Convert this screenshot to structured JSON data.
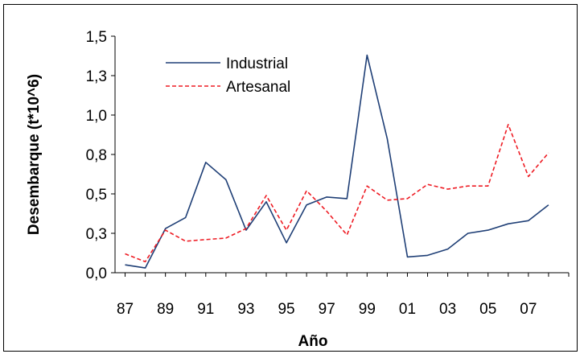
{
  "chart_data": {
    "type": "line",
    "title": "",
    "xlabel": "Año",
    "ylabel": "Desembarque  (t*10^6)",
    "x": [
      87,
      88,
      89,
      90,
      91,
      92,
      93,
      94,
      95,
      96,
      97,
      98,
      99,
      100,
      101,
      102,
      103,
      104,
      105,
      106,
      107,
      108
    ],
    "x_tick_labels": [
      "87",
      "89",
      "91",
      "93",
      "95",
      "97",
      "99",
      "01",
      "03",
      "05",
      "07"
    ],
    "y_tick_labels": [
      "0,0",
      "0,3",
      "0,5",
      "0,8",
      "1,0",
      "1,3",
      "1,5"
    ],
    "ylim": [
      0,
      1.5
    ],
    "grid": false,
    "legend_position": "top-left",
    "series": [
      {
        "name": "Industrial",
        "color": "#1f3f76",
        "style": "solid",
        "values": [
          0.05,
          0.03,
          0.28,
          0.35,
          0.7,
          0.59,
          0.27,
          0.45,
          0.19,
          0.43,
          0.48,
          0.47,
          1.38,
          0.85,
          0.1,
          0.11,
          0.15,
          0.25,
          0.27,
          0.31,
          0.33,
          0.43
        ]
      },
      {
        "name": "Artesanal",
        "color": "#ee1c24",
        "style": "dashed",
        "values": [
          0.12,
          0.07,
          0.27,
          0.2,
          0.21,
          0.22,
          0.28,
          0.49,
          0.27,
          0.52,
          0.39,
          0.24,
          0.55,
          0.46,
          0.47,
          0.56,
          0.53,
          0.55,
          0.55,
          0.94,
          0.61,
          0.76
        ]
      }
    ]
  }
}
